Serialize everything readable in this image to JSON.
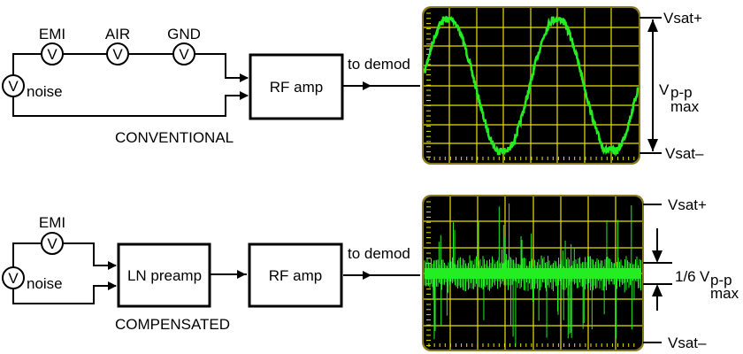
{
  "conventional": {
    "sources": [
      "EMI",
      "AIR",
      "GND"
    ],
    "noise_label": "noise",
    "source_symbol": "V",
    "amp_label": "RF amp",
    "output_label": "to demod",
    "caption": "CONVENTIONAL",
    "scope": {
      "trace": "sine wave with noise, clipped at saturation",
      "vsat_plus": "Vsat+",
      "vsat_minus": "Vsat–",
      "range_label": "V",
      "range_sub": "p-p",
      "range_sub2": "max"
    }
  },
  "compensated": {
    "sources": [
      "EMI"
    ],
    "noise_label": "noise",
    "source_symbol": "V",
    "preamp_label": "LN preamp",
    "amp_label": "RF amp",
    "output_label": "to demod",
    "caption": "COMPENSATED",
    "scope": {
      "trace": "noise band with spikes",
      "vsat_plus": "Vsat+",
      "vsat_minus": "Vsat–",
      "fraction": "1/6",
      "range_label": "V",
      "range_sub": "p-p",
      "range_sub2": "max"
    }
  },
  "colors": {
    "trace": "#22ee22",
    "grid": "#e8e000",
    "screen": "#000000",
    "bezel": "#8a7a20"
  }
}
